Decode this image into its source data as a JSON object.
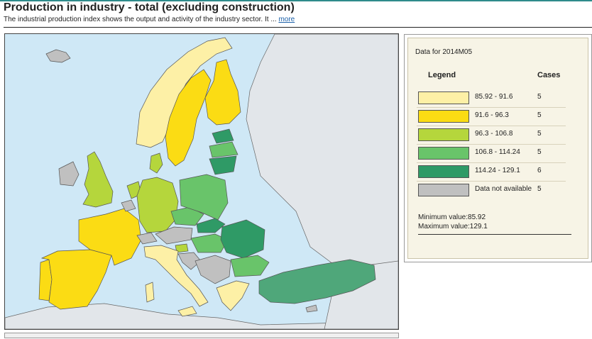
{
  "header": {
    "title": "Production in industry - total (excluding construction)",
    "subtitle": "The industrial production index shows the output and activity of the industry sector. It ...",
    "more_link": "more"
  },
  "legend": {
    "data_for": "Data for 2014M05",
    "legend_heading": "Legend",
    "cases_heading": "Cases",
    "classes": [
      {
        "range": "85.92 - 91.6",
        "cases": "5",
        "color": "#fdf0a6"
      },
      {
        "range": "91.6 - 96.3",
        "cases": "5",
        "color": "#fbdc14"
      },
      {
        "range": "96.3 - 106.8",
        "cases": "5",
        "color": "#b5d63c"
      },
      {
        "range": "106.8 - 114.24",
        "cases": "5",
        "color": "#69c46a"
      },
      {
        "range": "114.24 - 129.1",
        "cases": "6",
        "color": "#2f9a66"
      },
      {
        "range": "Data not available",
        "cases": "5",
        "color": "#c0c0c0"
      }
    ],
    "min_value": "Minimum value:85.92",
    "max_value": "Maximum value:129.1"
  },
  "map_colors": {
    "sea": "#cfe8f6",
    "non_eu_land": "#e2e6ea",
    "border": "#555555"
  }
}
